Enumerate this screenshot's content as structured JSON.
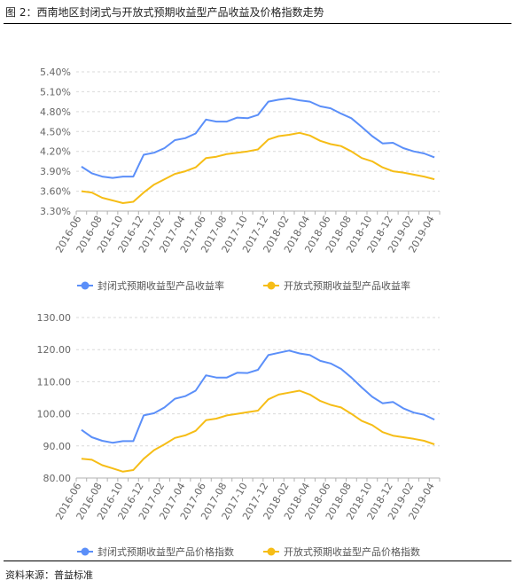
{
  "figure_title": "图 2：西南地区封闭式与开放式预期收益型产品收益及价格指数走势",
  "source_note": "资料来源：普益标准",
  "colors": {
    "blue": "#5b8ff9",
    "yellow": "#f6bd16",
    "axis": "#b0b0b0",
    "grid": "#d9d9d9"
  },
  "chart_data": [
    {
      "type": "line",
      "title": "",
      "xlabel": "",
      "ylabel": "",
      "ylim": [
        3.3,
        5.4
      ],
      "yticks": [
        "5.40%",
        "5.10%",
        "4.80%",
        "4.50%",
        "4.20%",
        "3.90%",
        "3.60%",
        "3.30%"
      ],
      "grid": "horizontal",
      "legend": "bottom",
      "categories": [
        "2016-06",
        "2016-07",
        "2016-08",
        "2016-09",
        "2016-10",
        "2016-11",
        "2016-12",
        "2017-01",
        "2017-02",
        "2017-03",
        "2017-04",
        "2017-05",
        "2017-06",
        "2017-07",
        "2017-08",
        "2017-09",
        "2017-10",
        "2017-11",
        "2017-12",
        "2018-01",
        "2018-02",
        "2018-03",
        "2018-04",
        "2018-05",
        "2018-06",
        "2018-07",
        "2018-08",
        "2018-09",
        "2018-10",
        "2018-11",
        "2018-12",
        "2019-01",
        "2019-02",
        "2019-03",
        "2019-04"
      ],
      "xtick_labels": [
        "2016-06",
        "2016-08",
        "2016-10",
        "2016-12",
        "2017-02",
        "2017-04",
        "2017-06",
        "2017-08",
        "2017-10",
        "2017-12",
        "2018-02",
        "2018-04",
        "2018-06",
        "2018-08",
        "2018-10",
        "2018-12",
        "2019-02",
        "2019-04"
      ],
      "series": [
        {
          "name": "封闭式预期收益型产品收益率",
          "color": "#5b8ff9",
          "values": [
            3.97,
            3.87,
            3.82,
            3.8,
            3.82,
            3.82,
            4.15,
            4.18,
            4.25,
            4.37,
            4.4,
            4.47,
            4.68,
            4.65,
            4.65,
            4.71,
            4.7,
            4.75,
            4.95,
            4.98,
            5.0,
            4.97,
            4.95,
            4.88,
            4.85,
            4.77,
            4.7,
            4.57,
            4.43,
            4.32,
            4.33,
            4.25,
            4.2,
            4.17,
            4.11
          ]
        },
        {
          "name": "开放式预期收益型产品收益率",
          "color": "#f6bd16",
          "values": [
            3.6,
            3.58,
            3.5,
            3.46,
            3.42,
            3.44,
            3.58,
            3.7,
            3.78,
            3.86,
            3.9,
            3.96,
            4.1,
            4.12,
            4.16,
            4.18,
            4.2,
            4.23,
            4.38,
            4.43,
            4.45,
            4.48,
            4.44,
            4.36,
            4.31,
            4.28,
            4.2,
            4.1,
            4.05,
            3.96,
            3.9,
            3.88,
            3.85,
            3.82,
            3.78
          ]
        }
      ]
    },
    {
      "type": "line",
      "title": "",
      "xlabel": "",
      "ylabel": "",
      "ylim": [
        80,
        130
      ],
      "yticks": [
        "130.00",
        "120.00",
        "110.00",
        "100.00",
        "90.00",
        "80.00"
      ],
      "grid": "horizontal",
      "legend": "bottom",
      "categories": [
        "2016-06",
        "2016-07",
        "2016-08",
        "2016-09",
        "2016-10",
        "2016-11",
        "2016-12",
        "2017-01",
        "2017-02",
        "2017-03",
        "2017-04",
        "2017-05",
        "2017-06",
        "2017-07",
        "2017-08",
        "2017-09",
        "2017-10",
        "2017-11",
        "2017-12",
        "2018-01",
        "2018-02",
        "2018-03",
        "2018-04",
        "2018-05",
        "2018-06",
        "2018-07",
        "2018-08",
        "2018-09",
        "2018-10",
        "2018-11",
        "2018-12",
        "2019-01",
        "2019-02",
        "2019-03",
        "2019-04"
      ],
      "xtick_labels": [
        "2016-06",
        "2016-08",
        "2016-10",
        "2016-12",
        "2017-02",
        "2017-04",
        "2017-06",
        "2017-08",
        "2017-10",
        "2017-12",
        "2018-02",
        "2018-04",
        "2018-06",
        "2018-08",
        "2018-10",
        "2018-12",
        "2019-02",
        "2019-04"
      ],
      "series": [
        {
          "name": "封闭式预期收益型产品价格指数",
          "color": "#5b8ff9",
          "values": [
            95.0,
            92.7,
            91.6,
            91.0,
            91.5,
            91.5,
            99.5,
            100.2,
            102.0,
            104.7,
            105.5,
            107.2,
            112.0,
            111.3,
            111.3,
            112.8,
            112.7,
            113.7,
            118.3,
            119.0,
            119.7,
            118.8,
            118.3,
            116.5,
            115.7,
            114.0,
            111.3,
            108.2,
            105.3,
            103.3,
            103.7,
            101.7,
            100.4,
            99.7,
            98.2
          ]
        },
        {
          "name": "开放式预期收益型产品价格指数",
          "color": "#f6bd16",
          "values": [
            86.0,
            85.7,
            84.0,
            83.0,
            82.0,
            82.5,
            86.0,
            88.7,
            90.5,
            92.5,
            93.3,
            94.7,
            98.0,
            98.5,
            99.5,
            100.0,
            100.5,
            101.0,
            104.5,
            106.0,
            106.6,
            107.2,
            106.0,
            104.0,
            102.8,
            102.0,
            100.0,
            97.8,
            96.5,
            94.3,
            93.2,
            92.7,
            92.2,
            91.6,
            90.5
          ]
        }
      ]
    }
  ]
}
